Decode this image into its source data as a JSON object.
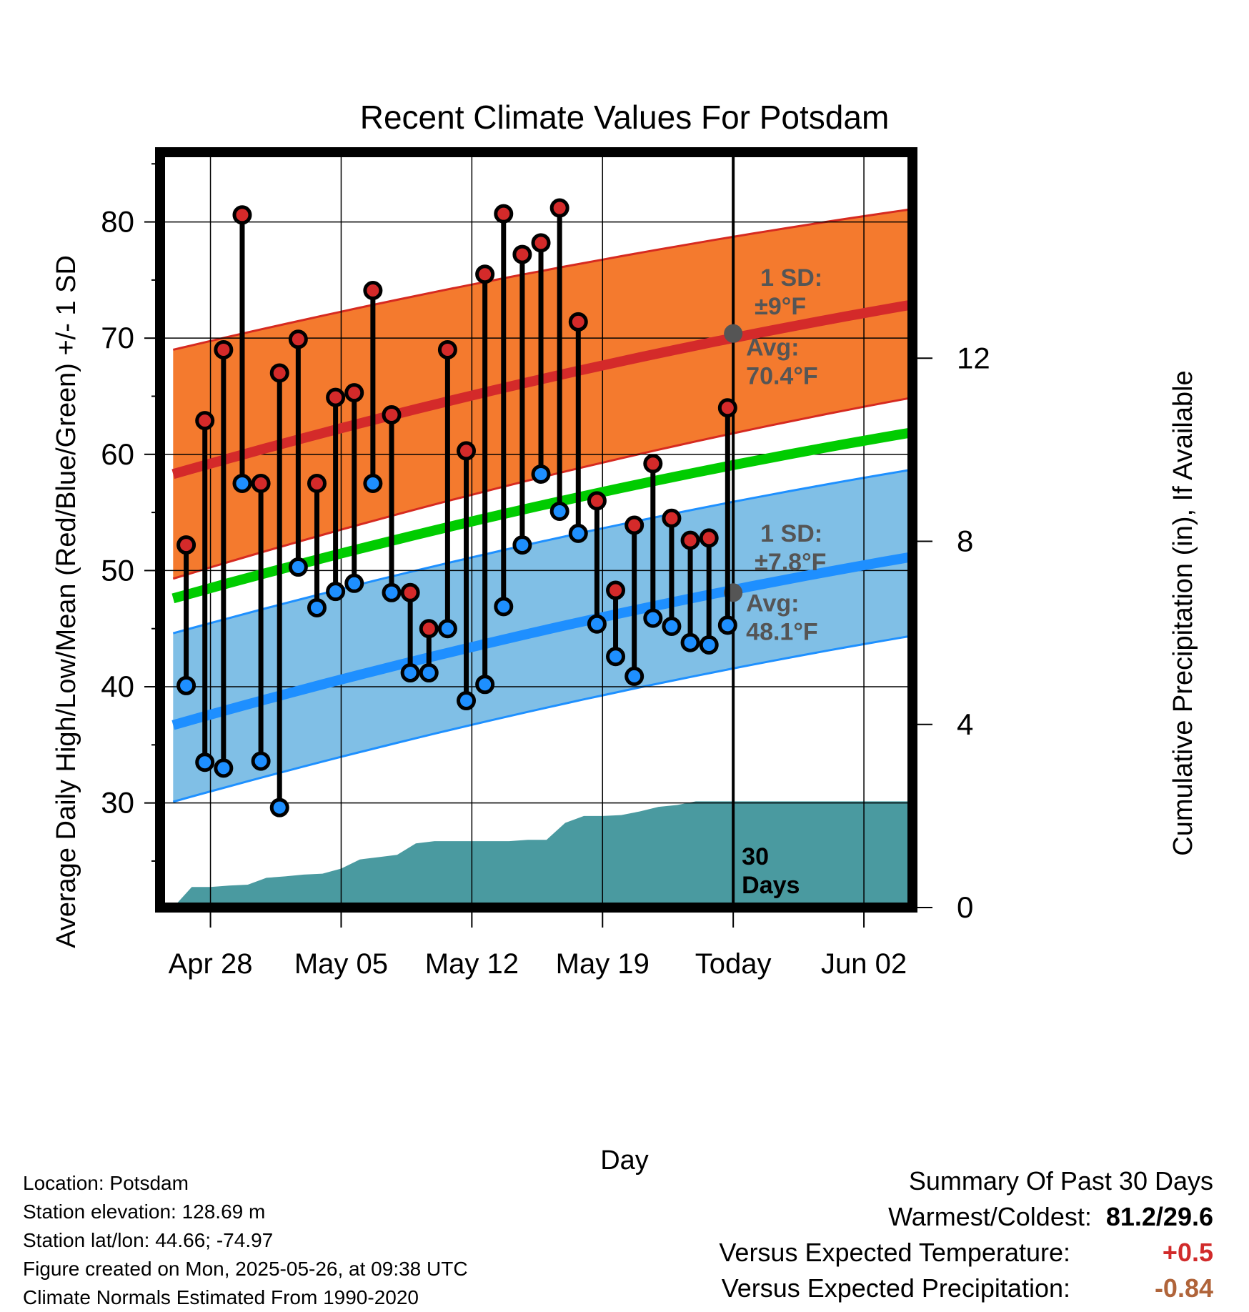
{
  "title": "Recent Climate Values For Potsdam",
  "chart_data": {
    "type": "line",
    "title": "Recent Climate Values For Potsdam",
    "xlabel": "Day",
    "ylabel": "Average Daily High/Low/Mean (Red/Blue/Green) +/- 1 SD",
    "y2label": "Cumulative Precipitation (in), If Available",
    "x_tick_labels": [
      "Apr 28",
      "May 05",
      "May 12",
      "May 19",
      "Today",
      "Jun 02"
    ],
    "x_tick_days": [
      2,
      9,
      16,
      23,
      30,
      37
    ],
    "xlim": [
      -0.7,
      39.6
    ],
    "ylim": [
      21,
      86
    ],
    "y_ticks": [
      30,
      40,
      50,
      60,
      70,
      80
    ],
    "y2lim": [
      0,
      16.5
    ],
    "y2_ticks": [
      0,
      4,
      8,
      12
    ],
    "grid": true,
    "today_day": 30,
    "today_label": "30\nDays",
    "normals": {
      "high_avg": [
        58.3,
        73.0
      ],
      "high_sd_band_lower": [
        49.3,
        65.0
      ],
      "high_sd_band_upper": [
        69.0,
        81.2
      ],
      "mean_avg": [
        47.6,
        62.0
      ],
      "low_avg": [
        36.7,
        51.3
      ],
      "low_sd_band_lower": [
        30.1,
        44.5
      ],
      "low_sd_band_upper": [
        44.6,
        58.8
      ],
      "day_range": [
        0,
        40
      ]
    },
    "annotations": [
      {
        "line1": "1 SD:",
        "line2": "±9°F",
        "y": 74.5
      },
      {
        "line1": "Avg:",
        "line2": "70.4°F",
        "y": 68.5,
        "marker_value": 70.4
      },
      {
        "line1": "1 SD:",
        "line2": "±7.8°F",
        "y": 52.5
      },
      {
        "line1": "Avg:",
        "line2": "48.1°F",
        "y": 46.5,
        "marker_value": 48.1
      }
    ],
    "days": [
      {
        "day": 0.7,
        "high": 52.2,
        "low": 40.1
      },
      {
        "day": 1.7,
        "high": 62.9,
        "low": 33.5
      },
      {
        "day": 2.7,
        "high": 69.0,
        "low": 33.0
      },
      {
        "day": 3.7,
        "high": 80.6,
        "low": 57.5
      },
      {
        "day": 4.7,
        "high": 57.5,
        "low": 33.6
      },
      {
        "day": 5.7,
        "high": 67.0,
        "low": 29.6
      },
      {
        "day": 6.7,
        "high": 69.9,
        "low": 50.3
      },
      {
        "day": 7.7,
        "high": 57.5,
        "low": 46.8
      },
      {
        "day": 8.7,
        "high": 64.9,
        "low": 48.2
      },
      {
        "day": 9.7,
        "high": 65.3,
        "low": 48.9
      },
      {
        "day": 10.7,
        "high": 74.1,
        "low": 57.5
      },
      {
        "day": 11.7,
        "high": 63.4,
        "low": 48.1
      },
      {
        "day": 12.7,
        "high": 48.1,
        "low": 41.2
      },
      {
        "day": 13.7,
        "high": 45.0,
        "low": 41.2
      },
      {
        "day": 14.7,
        "high": 69.0,
        "low": 45.0
      },
      {
        "day": 15.7,
        "high": 60.3,
        "low": 38.8
      },
      {
        "day": 16.7,
        "high": 75.5,
        "low": 40.2
      },
      {
        "day": 17.7,
        "high": 80.7,
        "low": 46.9
      },
      {
        "day": 18.7,
        "high": 77.2,
        "low": 52.2
      },
      {
        "day": 19.7,
        "high": 78.2,
        "low": 58.3
      },
      {
        "day": 20.7,
        "high": 81.2,
        "low": 55.1
      },
      {
        "day": 21.7,
        "high": 71.4,
        "low": 53.2
      },
      {
        "day": 22.7,
        "high": 56.0,
        "low": 45.4
      },
      {
        "day": 23.7,
        "high": 48.3,
        "low": 42.6
      },
      {
        "day": 24.7,
        "high": 53.9,
        "low": 40.9
      },
      {
        "day": 25.7,
        "high": 59.2,
        "low": 45.9
      },
      {
        "day": 26.7,
        "high": 54.5,
        "low": 45.2
      },
      {
        "day": 27.7,
        "high": 52.6,
        "low": 43.8
      },
      {
        "day": 28.7,
        "high": 52.8,
        "low": 43.6
      },
      {
        "day": 29.7,
        "high": 64.0,
        "low": 45.3
      }
    ],
    "precip_cumulative": [
      {
        "day": 0.0,
        "value": 0.0
      },
      {
        "day": 1.0,
        "value": 0.45
      },
      {
        "day": 2.0,
        "value": 0.45
      },
      {
        "day": 3.0,
        "value": 0.48
      },
      {
        "day": 4.0,
        "value": 0.5
      },
      {
        "day": 5.0,
        "value": 0.65
      },
      {
        "day": 6.0,
        "value": 0.68
      },
      {
        "day": 7.0,
        "value": 0.72
      },
      {
        "day": 8.0,
        "value": 0.74
      },
      {
        "day": 9.0,
        "value": 0.85
      },
      {
        "day": 10.0,
        "value": 1.05
      },
      {
        "day": 11.0,
        "value": 1.1
      },
      {
        "day": 12.0,
        "value": 1.15
      },
      {
        "day": 13.0,
        "value": 1.4
      },
      {
        "day": 14.0,
        "value": 1.45
      },
      {
        "day": 15.0,
        "value": 1.45
      },
      {
        "day": 16.0,
        "value": 1.45
      },
      {
        "day": 17.0,
        "value": 1.45
      },
      {
        "day": 18.0,
        "value": 1.45
      },
      {
        "day": 19.0,
        "value": 1.48
      },
      {
        "day": 20.0,
        "value": 1.48
      },
      {
        "day": 21.0,
        "value": 1.85
      },
      {
        "day": 22.0,
        "value": 2.0
      },
      {
        "day": 23.0,
        "value": 2.0
      },
      {
        "day": 24.0,
        "value": 2.02
      },
      {
        "day": 25.0,
        "value": 2.1
      },
      {
        "day": 26.0,
        "value": 2.2
      },
      {
        "day": 27.0,
        "value": 2.24
      },
      {
        "day": 28.0,
        "value": 2.32
      },
      {
        "day": 30.0,
        "value": 2.32
      },
      {
        "day": 40.0,
        "value": 2.32
      }
    ],
    "colors": {
      "high_band": "#f47a2e",
      "high_band_edge": "#d62a20",
      "high_avg": "#d42a2a",
      "mean": "#00cc00",
      "low_band": "#80bfe6",
      "low_band_edge": "#1e90ff",
      "low_avg": "#1e8fff",
      "high_marker": "#d42a2a",
      "low_marker": "#1e8fff",
      "precip": "#4a9aa0",
      "annotation": "#555555"
    }
  },
  "footer": {
    "location": "Location: Potsdam",
    "elevation": "Station elevation: 128.69 m",
    "latlon": "Station lat/lon: 44.66; -74.97",
    "created": "Figure created on Mon, 2025-05-26, at 09:38 UTC",
    "normals": "Climate Normals Estimated From 1990-2020"
  },
  "summary": {
    "heading": "Summary Of Past 30 Days",
    "warmest_label": "Warmest/Coldest:",
    "warmest_value": "81.2/29.6",
    "temp_label": "Versus Expected Temperature:",
    "temp_value": "+0.5",
    "precip_label": "Versus Expected Precipitation:",
    "precip_value": "-0.84"
  }
}
